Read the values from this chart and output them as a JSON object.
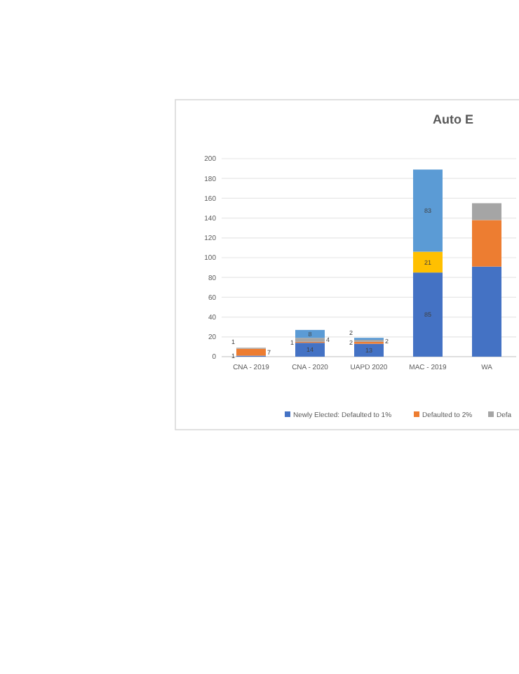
{
  "chart_data": {
    "type": "bar",
    "title": "Auto E",
    "stacked": true,
    "categories": [
      "CNA - 2019",
      "CNA - 2020",
      "UAPD 2020",
      "MAC - 2019",
      "WA"
    ],
    "series": [
      {
        "name": "Newly Elected: Defaulted to 1%",
        "color": "#4472c4",
        "values": [
          1,
          14,
          13,
          85,
          91
        ],
        "value_labels": [
          "1",
          "14",
          "13",
          "85",
          null
        ]
      },
      {
        "name": "Defaulted to 2%",
        "color": "#ed7d31",
        "values": [
          7,
          1,
          2,
          null,
          47
        ],
        "value_labels": [
          "7",
          "1",
          "2",
          null,
          null
        ]
      },
      {
        "name": "Defa",
        "color": "#a5a5a5",
        "values": [
          1,
          4,
          2,
          null,
          17
        ],
        "value_labels": [
          "1",
          "4",
          "2",
          null,
          null
        ]
      },
      {
        "color": "#ffc000",
        "values": [
          null,
          null,
          null,
          21,
          null
        ],
        "value_labels": [
          null,
          null,
          null,
          "21",
          null
        ]
      },
      {
        "color": "#5b9bd5",
        "values": [
          null,
          8,
          2,
          83,
          null
        ],
        "value_labels": [
          null,
          "8",
          "2",
          "83",
          null
        ]
      }
    ],
    "ylim": [
      0,
      200
    ],
    "yticks": [
      0,
      20,
      40,
      60,
      80,
      100,
      120,
      140,
      160,
      180,
      200
    ],
    "grid": "y",
    "legend": "bottom"
  }
}
